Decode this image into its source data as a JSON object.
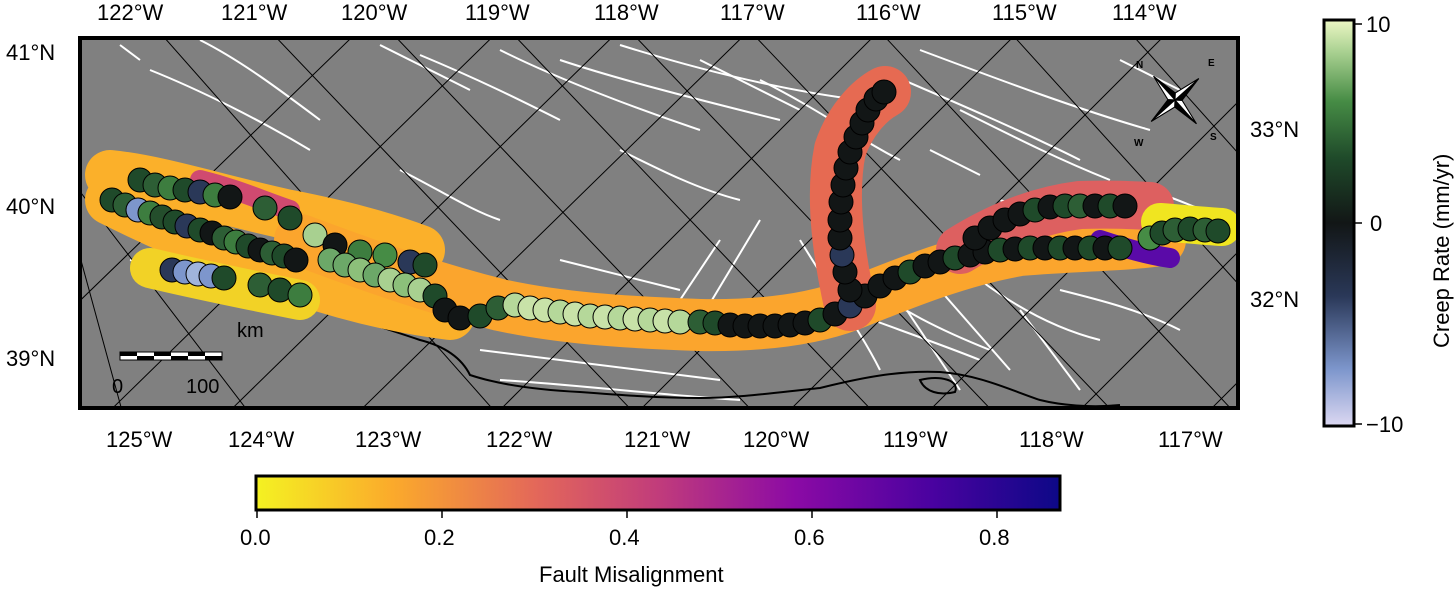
{
  "map": {
    "top_longitude_labels": [
      "122°W",
      "121°W",
      "120°W",
      "119°W",
      "118°W",
      "117°W",
      "116°W",
      "115°W",
      "114°W"
    ],
    "bottom_longitude_labels": [
      "125°W",
      "124°W",
      "123°W",
      "122°W",
      "121°W",
      "120°W",
      "119°W",
      "118°W",
      "117°W"
    ],
    "left_latitude_labels": [
      "41°N",
      "40°N",
      "39°N"
    ],
    "right_latitude_labels": [
      "33°N",
      "32°N"
    ],
    "land_color": "#808080",
    "fault_trace_color": "#ffffff",
    "coastline_color": "#000000"
  },
  "compass": {
    "labels": {
      "north": "N",
      "east": "E",
      "south": "S",
      "west": "W"
    },
    "icon": "compass-rose-icon"
  },
  "scale_bar": {
    "unit": "km",
    "start": "0",
    "end": "100"
  },
  "creep_colorbar": {
    "title": "Creep Rate (mm/yr)",
    "ticks": [
      "10",
      "0",
      "−10"
    ],
    "range": [
      -10,
      10
    ],
    "stops": [
      "#dcd8f2",
      "#7d96cc",
      "#2a3858",
      "#121616",
      "#1f4a2a",
      "#468c45",
      "#a8d090",
      "#ecf7c4"
    ]
  },
  "misalignment_colorbar": {
    "title": "Fault Misalignment",
    "ticks": [
      "0.0",
      "0.2",
      "0.4",
      "0.6",
      "0.8"
    ],
    "range": [
      0,
      0.87
    ],
    "stops": [
      "#f4f222",
      "#fbaa2b",
      "#e3675a",
      "#c13c7b",
      "#8b0aa5",
      "#4a02a0",
      "#0d0887"
    ]
  }
}
